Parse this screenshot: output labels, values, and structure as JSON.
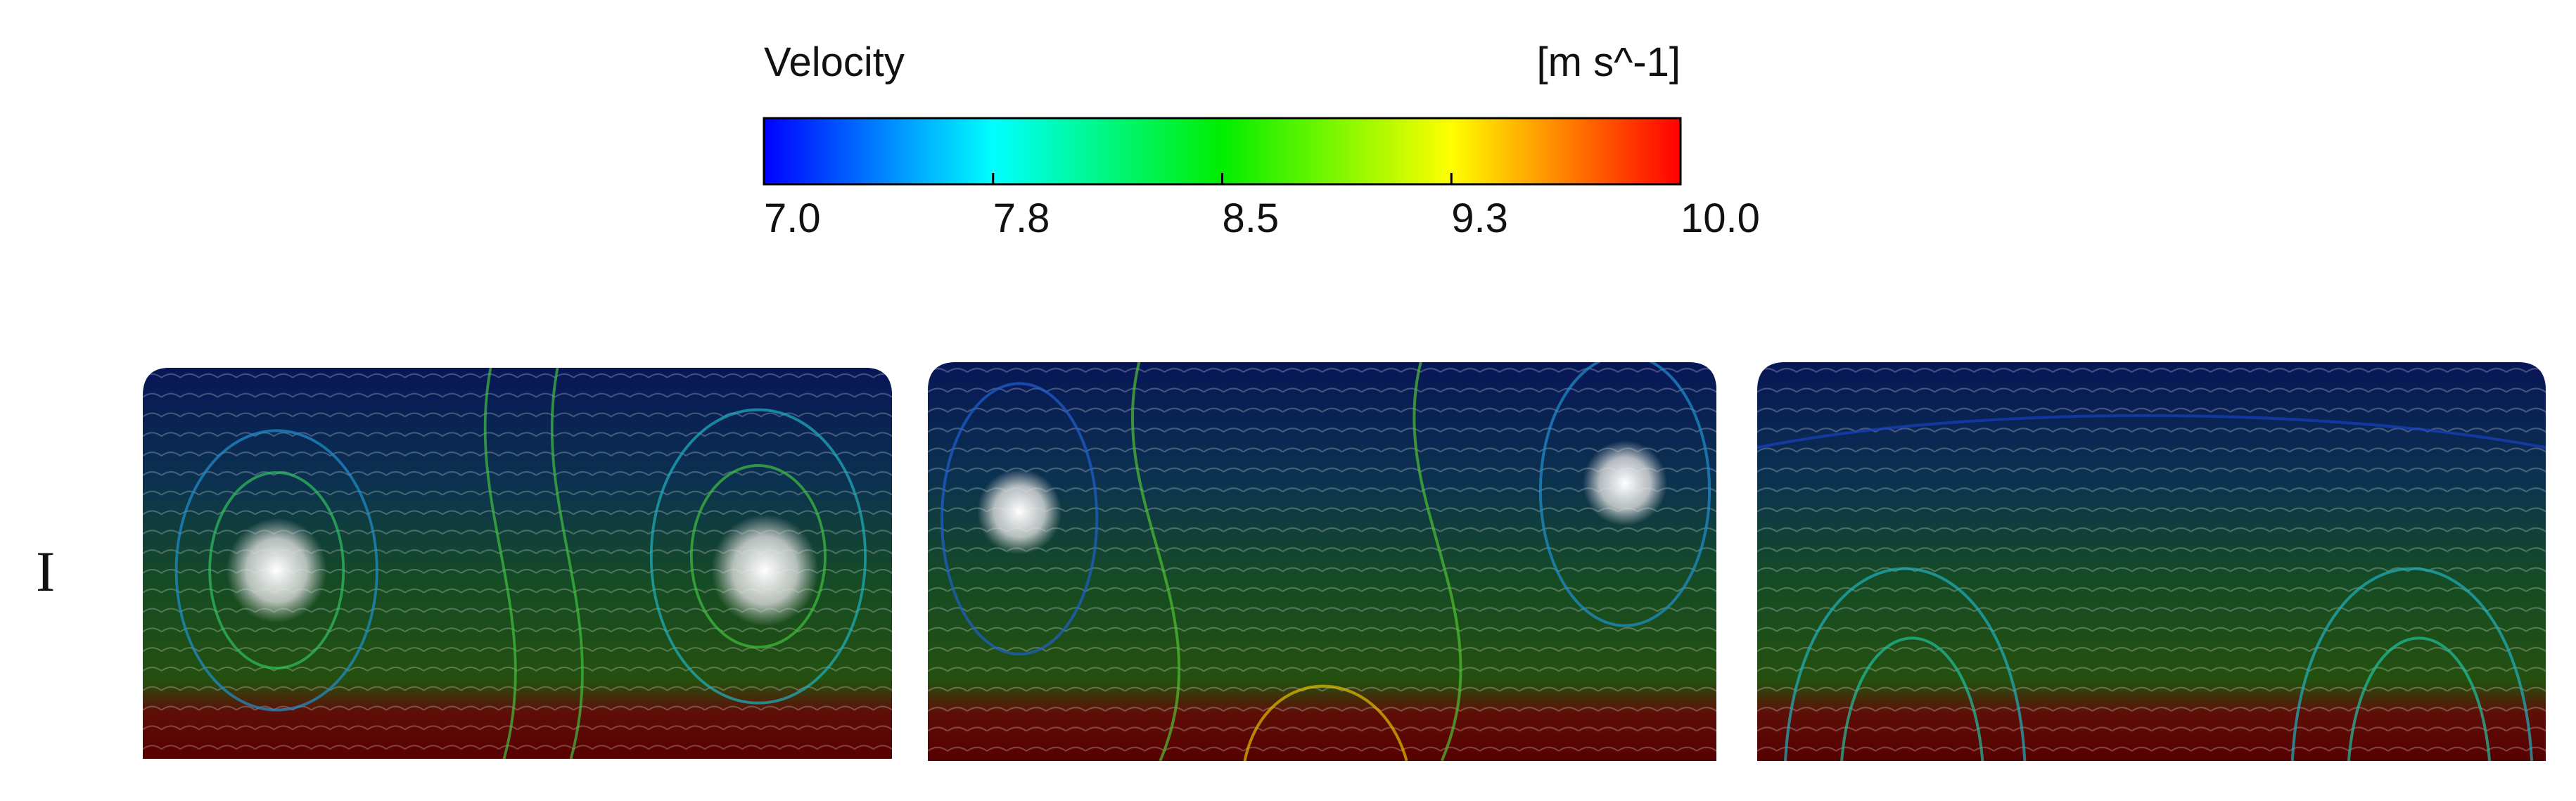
{
  "legend": {
    "title": "Velocity",
    "unit": "[m s^-1]",
    "ticks": [
      "7.0",
      "7.8",
      "8.5",
      "9.3",
      "10.0"
    ]
  },
  "row_label": "I"
}
